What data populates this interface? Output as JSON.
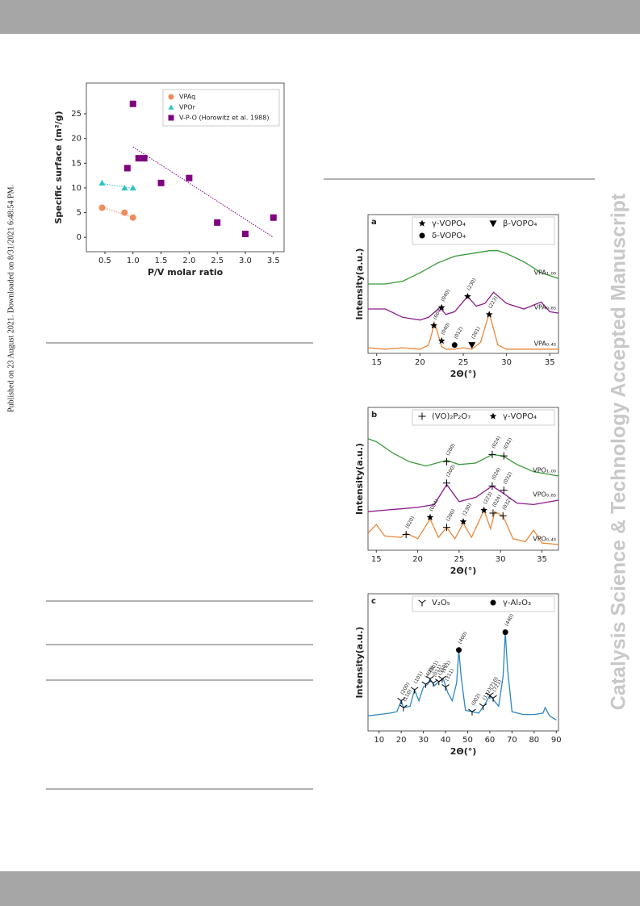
{
  "side_note": "Published on 23 August 2021. Downloaded on 8/31/2021 6:48:54 PM.",
  "watermark": "Catalysis Science & Technology Accepted Manuscript",
  "chart_data": [
    {
      "type": "scatter",
      "ylabel": "Specific surface (m²/g)",
      "xlabel": "P/V molar ratio",
      "xlim": [
        0.17,
        3.69
      ],
      "ylim": [
        -2.9,
        31.2
      ],
      "xticks": [
        0.5,
        {
          "value": 1.0,
          "label": "1.0"
        },
        1.5,
        {
          "value": 2.0,
          "label": "2.0"
        },
        2.5,
        {
          "value": 3.0,
          "label": "3.0"
        },
        3.5
      ],
      "yticks": [
        0,
        5,
        10,
        15,
        20,
        25
      ],
      "legend": "upper right",
      "series": [
        {
          "name": "VPAq",
          "color": "#f08c5a",
          "marker": "circle",
          "x": [
            0.45,
            0.85,
            1.0
          ],
          "values": [
            6,
            5,
            4
          ],
          "fit": {
            "x": [
              0.45,
              1.0
            ],
            "values": [
              6.1,
              4.0
            ]
          }
        },
        {
          "name": "VPOr",
          "color": "#2ec4c6",
          "marker": "triangle",
          "x": [
            0.45,
            0.85,
            1.0
          ],
          "values": [
            11,
            10,
            10
          ],
          "fit": {
            "x": [
              0.45,
              1.0
            ],
            "values": [
              10.9,
              9.9
            ]
          }
        },
        {
          "name": "V-P-O (Horowitz et al. 1988)",
          "color": "#800080",
          "marker": "square",
          "x": [
            0.9,
            1.0,
            1.1,
            1.2,
            1.5,
            2.0,
            2.5,
            3.0,
            3.5
          ],
          "values": [
            14,
            27,
            16,
            16,
            11,
            12,
            3,
            0.7,
            4
          ],
          "fit": {
            "x": [
              1.0,
              3.5
            ],
            "values": [
              18.3,
              0
            ]
          }
        }
      ]
    },
    {
      "type": "line",
      "panel": "a",
      "ylabel": "Intensity(a.u.)",
      "xlabel": "2Θ(°)",
      "xlim": [
        14,
        36
      ],
      "ylim": [
        0,
        100
      ],
      "xticks": [
        15,
        20,
        25,
        30,
        35
      ],
      "legend_items": [
        {
          "name": "γ-VOPO₄",
          "marker": "star"
        },
        {
          "name": "β-VOPO₄",
          "marker": "down"
        },
        {
          "name": "δ-VOPO₄",
          "marker": "circle"
        }
      ],
      "series": [
        {
          "name": "VPA₁.₀₀",
          "color": "#3a9a3a",
          "x": [
            14,
            16,
            18,
            20,
            22,
            24,
            26,
            28,
            29,
            30,
            32,
            34,
            36
          ],
          "values": [
            50,
            50,
            52,
            58,
            65,
            70,
            72,
            74,
            74,
            72,
            66,
            58,
            54
          ]
        },
        {
          "name": "VPA₀.₈₅",
          "color": "#8b1a8b",
          "x": [
            14,
            16,
            18,
            20,
            21,
            22.3,
            23,
            24,
            25.5,
            26.5,
            27.5,
            28.5,
            30,
            32,
            34,
            35,
            36
          ],
          "values": [
            32,
            32,
            26,
            24,
            26,
            33,
            28,
            30,
            41,
            34,
            36,
            44,
            36,
            32,
            37,
            30,
            29
          ]
        },
        {
          "name": "VPA₀.₄₃",
          "color": "#e8873a",
          "x": [
            14,
            16,
            18,
            20,
            21,
            21.7,
            22.5,
            23,
            24,
            25,
            26,
            27,
            28,
            29,
            30,
            32,
            34,
            36
          ],
          "values": [
            4,
            3,
            4,
            3,
            6,
            22,
            5,
            3,
            3,
            4,
            3,
            8,
            29,
            6,
            3,
            3,
            3,
            3
          ]
        }
      ],
      "annotations": [
        {
          "x": 22.5,
          "y": 33,
          "marker": "star",
          "label": "(040)"
        },
        {
          "x": 25.5,
          "y": 41,
          "marker": "star",
          "label": "(230)"
        },
        {
          "x": 21.6,
          "y": 20,
          "marker": "star",
          "label": "(004)"
        },
        {
          "x": 22.5,
          "y": 9,
          "marker": "star",
          "label": "(040)"
        },
        {
          "x": 24.0,
          "y": 6,
          "marker": "circle",
          "label": "(012)"
        },
        {
          "x": 26.0,
          "y": 6,
          "marker": "down",
          "label": "(201)"
        },
        {
          "x": 28.0,
          "y": 28,
          "marker": "star",
          "label": "(223)"
        }
      ]
    },
    {
      "type": "line",
      "panel": "b",
      "ylabel": "Intensity(a.u.)",
      "xlabel": "2Θ(°)",
      "xlim": [
        14,
        37
      ],
      "ylim": [
        0,
        100
      ],
      "xticks": [
        15,
        20,
        25,
        30,
        35
      ],
      "legend_items": [
        {
          "name": "(VO)₂P₂O₇",
          "marker": "plus"
        },
        {
          "name": "γ-VOPO₄",
          "marker": "star"
        }
      ],
      "series": [
        {
          "name": "VPO₁.₀₀",
          "color": "#3a9a3a",
          "x": [
            14,
            15,
            17,
            19,
            21,
            23.5,
            25,
            27,
            29,
            30.3,
            32,
            34,
            37
          ],
          "values": [
            78,
            76,
            68,
            62,
            59,
            63,
            60,
            61,
            67,
            66,
            60,
            55,
            52
          ]
        },
        {
          "name": "VPO₀.₈₅",
          "color": "#8b1a8b",
          "x": [
            14,
            16,
            18,
            20,
            22,
            23.5,
            25,
            27,
            29,
            30.3,
            32,
            34,
            37
          ],
          "values": [
            27,
            28,
            29,
            30,
            32,
            46,
            34,
            37,
            45,
            40,
            33,
            32,
            35
          ]
        },
        {
          "name": "VPO₀.₄₃",
          "color": "#e8873a",
          "x": [
            14,
            15,
            16,
            18,
            18.6,
            20,
            21.5,
            22.5,
            23.5,
            24.5,
            25.5,
            26.5,
            28,
            28.8,
            29.3,
            30.3,
            31.5,
            33,
            34,
            35,
            37
          ],
          "values": [
            12,
            18,
            10,
            9,
            12,
            8,
            22,
            9,
            16,
            8,
            19,
            9,
            28,
            15,
            27,
            24,
            8,
            6,
            14,
            5,
            4
          ]
        }
      ],
      "annotations": [
        {
          "x": 23.5,
          "y": 62,
          "marker": "plus",
          "label": "(200)"
        },
        {
          "x": 29,
          "y": 67,
          "marker": "plus",
          "label": "(024)"
        },
        {
          "x": 30.4,
          "y": 66,
          "marker": "plus",
          "label": "(032)"
        },
        {
          "x": 23.5,
          "y": 47,
          "marker": "plus",
          "label": "(200)"
        },
        {
          "x": 29,
          "y": 45,
          "marker": "plus",
          "label": "(024)"
        },
        {
          "x": 30.4,
          "y": 42,
          "marker": "plus",
          "label": "(032)"
        },
        {
          "x": 18.6,
          "y": 11,
          "marker": "plus",
          "label": "(020)"
        },
        {
          "x": 21.5,
          "y": 23,
          "marker": "star",
          "label": "(004)"
        },
        {
          "x": 23.5,
          "y": 16,
          "marker": "plus",
          "label": "(200)"
        },
        {
          "x": 25.5,
          "y": 20,
          "marker": "star",
          "label": "(230)"
        },
        {
          "x": 28,
          "y": 28,
          "marker": "star",
          "label": "(223)"
        },
        {
          "x": 29.1,
          "y": 26,
          "marker": "plus",
          "label": "(024)"
        },
        {
          "x": 30.3,
          "y": 24,
          "marker": "plus",
          "label": "(032)"
        }
      ]
    },
    {
      "type": "line",
      "panel": "c",
      "ylabel": "Intensity(a.u.)",
      "xlabel": "2Θ(°)",
      "xlim": [
        5,
        91
      ],
      "ylim": [
        0,
        100
      ],
      "xticks": [
        10,
        20,
        30,
        40,
        50,
        60,
        70,
        80,
        90
      ],
      "legend_items": [
        {
          "name": "V₂O₅",
          "marker": "tri"
        },
        {
          "name": "γ-Al₂O₃",
          "marker": "circle"
        }
      ],
      "series": [
        {
          "color": "#2e86c1",
          "x": [
            5,
            10,
            15,
            18,
            20,
            21,
            24,
            26,
            28,
            30,
            32,
            33,
            35,
            37,
            39,
            41,
            43,
            45,
            46,
            47,
            49,
            52,
            55,
            58,
            60,
            62,
            64,
            66,
            67,
            68,
            70,
            75,
            80,
            84,
            85,
            87,
            90
          ],
          "values": [
            11,
            12,
            13,
            14,
            22,
            17,
            18,
            30,
            22,
            32,
            34,
            38,
            33,
            36,
            38,
            28,
            22,
            35,
            59,
            40,
            15,
            14,
            13,
            20,
            26,
            22,
            18,
            40,
            72,
            45,
            14,
            12,
            12,
            13,
            17,
            11,
            8
          ]
        }
      ],
      "annotations": [
        {
          "x": 20,
          "y": 22,
          "marker": "tri",
          "label": "(200)"
        },
        {
          "x": 21,
          "y": 17,
          "marker": "tri",
          "label": "(110)"
        },
        {
          "x": 26,
          "y": 30,
          "marker": "tri",
          "label": "(101)"
        },
        {
          "x": 31,
          "y": 34,
          "marker": "tri",
          "label": "(400)"
        },
        {
          "x": 33,
          "y": 38,
          "marker": "tri",
          "label": "(301)"
        },
        {
          "x": 34.5,
          "y": 35,
          "marker": "tri",
          "label": "(011)"
        },
        {
          "x": 37,
          "y": 36,
          "marker": "tri",
          "label": "(310)"
        },
        {
          "x": 38.5,
          "y": 38,
          "marker": "tri",
          "label": "(111)"
        },
        {
          "x": 40,
          "y": 32,
          "marker": "tri",
          "label": "(311)"
        },
        {
          "x": 46,
          "y": 59,
          "marker": "circle",
          "label": "(400)"
        },
        {
          "x": 52,
          "y": 14,
          "marker": "tri",
          "label": "(002)"
        },
        {
          "x": 57,
          "y": 18,
          "marker": "tri",
          "label": "(112)"
        },
        {
          "x": 60,
          "y": 26,
          "marker": "tri",
          "label": "(710)"
        },
        {
          "x": 61.5,
          "y": 24,
          "marker": "tri",
          "label": "(721)"
        },
        {
          "x": 67,
          "y": 72,
          "marker": "circle",
          "label": "(440)"
        }
      ]
    }
  ]
}
